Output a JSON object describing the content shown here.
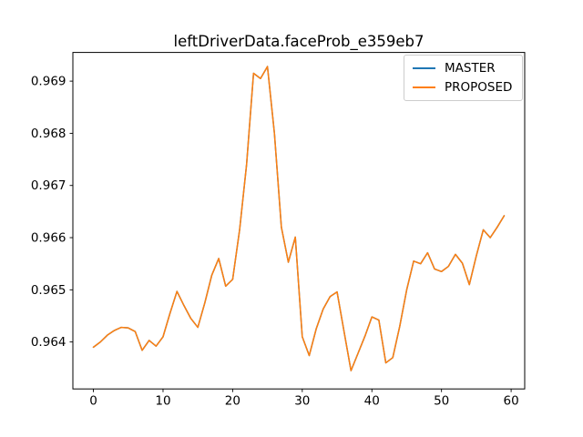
{
  "title": "leftDriverData.faceProb_e359eb7",
  "legend": {
    "items": [
      {
        "label": "MASTER",
        "color": "#1f77b4"
      },
      {
        "label": "PROPOSED",
        "color": "#ff7f0e"
      }
    ],
    "position": "upper right"
  },
  "chart_data": {
    "type": "line",
    "title": "leftDriverData.faceProb_e359eb7",
    "xlabel": "",
    "ylabel": "",
    "grid": false,
    "legend_position": "upper right",
    "xlim": [
      -2.95,
      61.95
    ],
    "ylim": [
      0.9631,
      0.96955
    ],
    "xticks": [
      0,
      10,
      20,
      30,
      40,
      50,
      60
    ],
    "yticks": [
      0.964,
      0.965,
      0.966,
      0.967,
      0.968,
      0.969
    ],
    "xtick_labels": [
      "0",
      "10",
      "20",
      "30",
      "40",
      "50",
      "60"
    ],
    "ytick_labels": [
      "0.964",
      "0.965",
      "0.966",
      "0.967",
      "0.968",
      "0.969"
    ],
    "x": [
      0,
      1,
      2,
      3,
      4,
      5,
      6,
      7,
      8,
      9,
      10,
      11,
      12,
      13,
      14,
      15,
      16,
      17,
      18,
      19,
      20,
      21,
      22,
      23,
      24,
      25,
      26,
      27,
      28,
      29,
      30,
      31,
      32,
      33,
      34,
      35,
      36,
      37,
      38,
      39,
      40,
      41,
      42,
      43,
      44,
      45,
      46,
      47,
      48,
      49,
      50,
      51,
      52,
      53,
      54,
      55,
      56,
      57,
      58,
      59
    ],
    "series": [
      {
        "name": "MASTER",
        "color": "#1f77b4",
        "values": [
          0.9639,
          0.964,
          0.96413,
          0.96422,
          0.96428,
          0.96427,
          0.9642,
          0.96384,
          0.96403,
          0.96392,
          0.9641,
          0.96455,
          0.96497,
          0.9647,
          0.96445,
          0.96428,
          0.96475,
          0.96528,
          0.9656,
          0.96507,
          0.9652,
          0.96615,
          0.9674,
          0.96915,
          0.96905,
          0.96928,
          0.968,
          0.9662,
          0.96553,
          0.96601,
          0.9641,
          0.96374,
          0.96425,
          0.96463,
          0.96487,
          0.96496,
          0.9642,
          0.96345,
          0.96378,
          0.96411,
          0.96448,
          0.96442,
          0.9636,
          0.9637,
          0.9643,
          0.965,
          0.96555,
          0.9655,
          0.96571,
          0.9654,
          0.96535,
          0.96545,
          0.96568,
          0.96551,
          0.9651,
          0.96565,
          0.96615,
          0.966,
          0.9662,
          0.96642
        ]
      },
      {
        "name": "PROPOSED",
        "color": "#ff7f0e",
        "values": [
          0.9639,
          0.964,
          0.96413,
          0.96422,
          0.96428,
          0.96427,
          0.9642,
          0.96384,
          0.96403,
          0.96392,
          0.9641,
          0.96455,
          0.96497,
          0.9647,
          0.96445,
          0.96428,
          0.96475,
          0.96528,
          0.9656,
          0.96507,
          0.9652,
          0.96615,
          0.9674,
          0.96915,
          0.96905,
          0.96928,
          0.968,
          0.9662,
          0.96553,
          0.96601,
          0.9641,
          0.96374,
          0.96425,
          0.96463,
          0.96487,
          0.96496,
          0.9642,
          0.96345,
          0.96378,
          0.96411,
          0.96448,
          0.96442,
          0.9636,
          0.9637,
          0.9643,
          0.965,
          0.96555,
          0.9655,
          0.96571,
          0.9654,
          0.96535,
          0.96545,
          0.96568,
          0.96551,
          0.9651,
          0.96565,
          0.96615,
          0.966,
          0.9662,
          0.96642
        ]
      }
    ]
  }
}
